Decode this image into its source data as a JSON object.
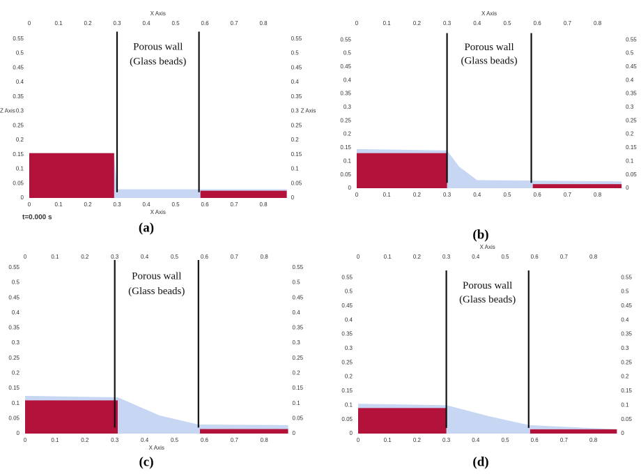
{
  "panels": [
    {
      "caption": "(a)",
      "annotation": [
        "Porous wall",
        "(Glass beads)"
      ],
      "x_axis_title": "X Axis",
      "bottom_axis_title": "X Axis",
      "z_axis_title": "Z Axis",
      "time_label": "t=0.000 s",
      "xticks": [
        "0",
        "0.1",
        "0.2",
        "0.3",
        "0.4",
        "0.5",
        "0.6",
        "0.7",
        "0.8"
      ],
      "yticks": [
        "0",
        "0.05",
        "0.1",
        "0.15",
        "0.2",
        "0.25",
        "0.3",
        "0.35",
        "0.4",
        "0.45",
        "0.5",
        "0.55"
      ]
    },
    {
      "caption": "(b)",
      "annotation": [
        "Porous wall",
        "(Glass beads)"
      ],
      "x_axis_title": "X Axis",
      "xticks": [
        "0",
        "0.1",
        "0.2",
        "0.3",
        "0.4",
        "0.5",
        "0.6",
        "0.7",
        "0.8"
      ],
      "yticks": [
        "0",
        "0.05",
        "0.1",
        "0.15",
        "0.2",
        "0.25",
        "0.3",
        "0.35",
        "0.4",
        "0.45",
        "0.5",
        "0.55"
      ]
    },
    {
      "caption": "(c)",
      "annotation": [
        "Porous wall",
        "(Glass beads)"
      ],
      "bottom_axis_title": "X Axis",
      "xticks": [
        "0",
        "0.1",
        "0.2",
        "0.3",
        "0.4",
        "0.5",
        "0.6",
        "0.7",
        "0.8"
      ],
      "yticks": [
        "0",
        "0.05",
        "0.1",
        "0.15",
        "0.2",
        "0.25",
        "0.3",
        "0.35",
        "0.4",
        "0.45",
        "0.5",
        "0.55"
      ]
    },
    {
      "caption": "(d)",
      "annotation": [
        "Porous wall",
        "(Glass beads)"
      ],
      "x_axis_title": "X Axis",
      "xticks": [
        "0",
        "0.1",
        "0.2",
        "0.3",
        "0.4",
        "0.5",
        "0.6",
        "0.7",
        "0.8"
      ],
      "yticks": [
        "0",
        "0.05",
        "0.1",
        "0.15",
        "0.2",
        "0.25",
        "0.3",
        "0.35",
        "0.4",
        "0.45",
        "0.5",
        "0.55"
      ]
    }
  ]
}
